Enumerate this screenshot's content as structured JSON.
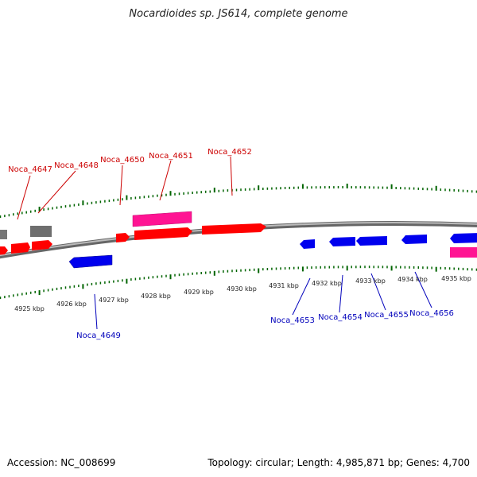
{
  "header": {
    "title": "Nocardioides sp. JS614, complete genome"
  },
  "footer": {
    "accession": "Accession: NC_008699",
    "stats": "Topology: circular; Length: 4,985,871 bp; Genes: 4,700"
  },
  "colors": {
    "forward_gene": "#ff0000",
    "reverse_gene": "#0000ee",
    "pink_gene": "#ff1493",
    "gray_gene": "#777777",
    "backbone": "#808080",
    "tick": "#006400",
    "forward_label": "#cc0000",
    "reverse_label": "#0000bb"
  },
  "scale": {
    "unit": "kbp",
    "labels": [
      "4925 kbp",
      "4926 kbp",
      "4927 kbp",
      "4928 kbp",
      "4929 kbp",
      "4930 kbp",
      "4931 kbp",
      "4932 kbp",
      "4933 kbp",
      "4934 kbp",
      "4935 kbp"
    ]
  },
  "genes": {
    "forward_labels": [
      "Noca_4647",
      "Noca_4648",
      "Noca_4650",
      "Noca_4651",
      "Noca_4652"
    ],
    "reverse_labels": [
      "Noca_4649",
      "Noca_4653",
      "Noca_4654",
      "Noca_4655",
      "Noca_4656"
    ]
  }
}
